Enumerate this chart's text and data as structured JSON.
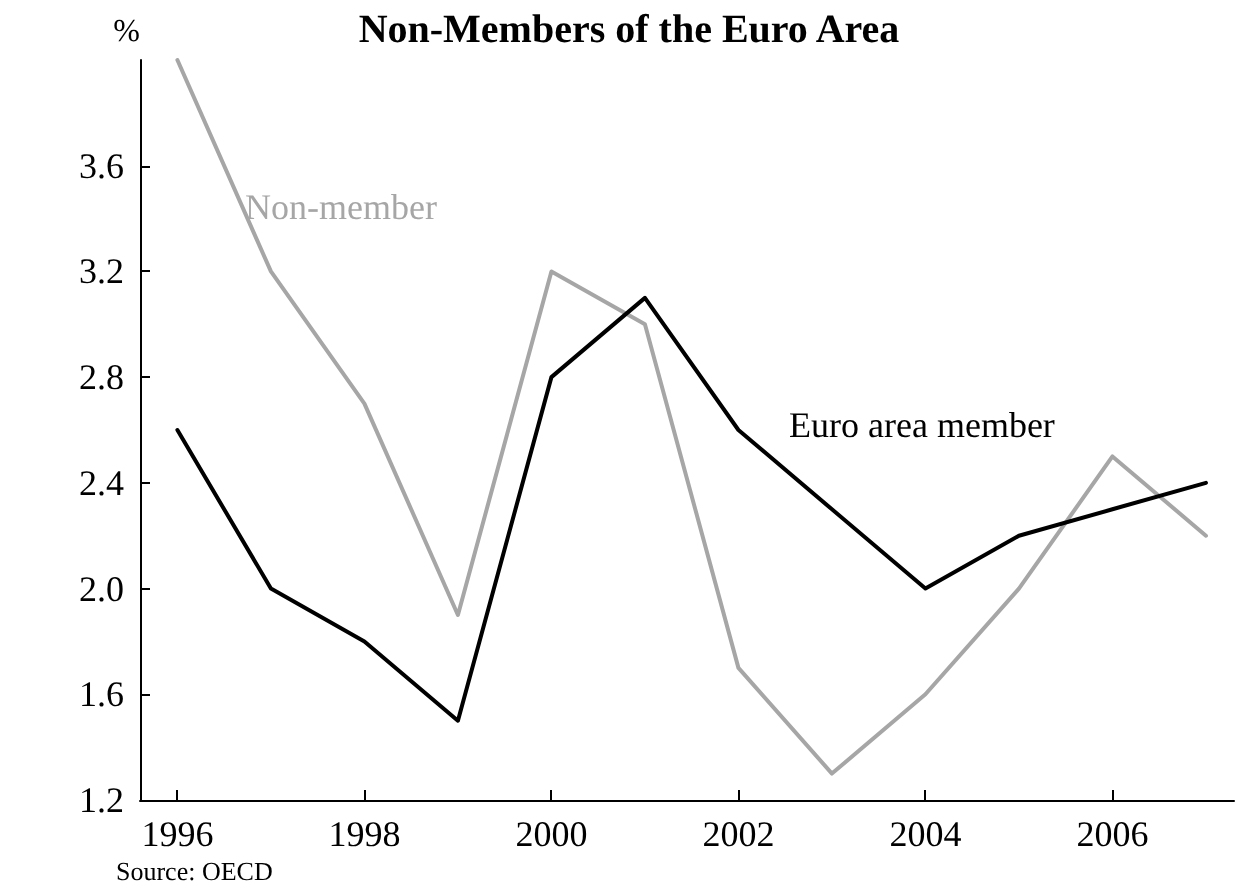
{
  "chart_data": {
    "type": "line",
    "title": "Non-Members of the Euro Area",
    "ylabel": "%",
    "x": [
      1996,
      1997,
      1998,
      1999,
      2000,
      2001,
      2002,
      2003,
      2004,
      2005,
      2006,
      2007
    ],
    "series": [
      {
        "name": "Non-member",
        "color": "#a6a6a6",
        "values": [
          4.0,
          3.2,
          2.7,
          1.9,
          3.2,
          3.0,
          1.7,
          1.3,
          1.6,
          2.0,
          2.5,
          2.2
        ]
      },
      {
        "name": "Euro area member",
        "color": "#000000",
        "values": [
          2.6,
          2.0,
          1.8,
          1.5,
          2.8,
          3.1,
          2.6,
          2.3,
          2.0,
          2.2,
          2.3,
          2.4
        ]
      }
    ],
    "xlim": [
      1995.6,
      2007.3
    ],
    "xticks": [
      1996,
      1998,
      2000,
      2002,
      2004,
      2006
    ],
    "ylim": [
      1.2,
      4.0
    ],
    "yticks": [
      1.2,
      1.6,
      {
        "value": 2,
        "label": "2.0"
      },
      2.4,
      2.8,
      3.2,
      3.6
    ],
    "annotations": [
      "Source: OECD"
    ],
    "grid": false,
    "marker": "none",
    "line_style": "solid"
  }
}
